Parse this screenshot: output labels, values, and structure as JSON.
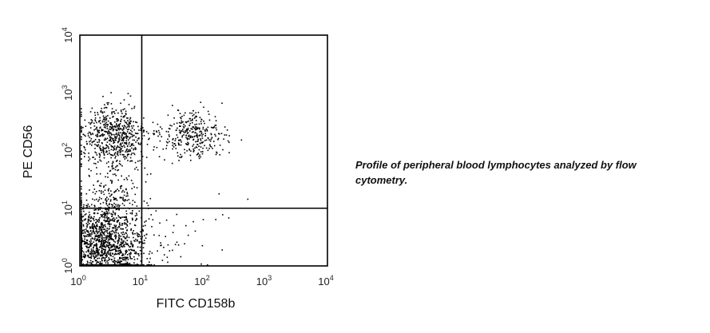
{
  "caption": "Profile of peripheral blood lymphocytes analyzed by flow cytometry.",
  "chart_data": {
    "type": "scatter",
    "title": "",
    "xlabel": "FITC CD158b",
    "ylabel": "PE CD56",
    "xscale": "log",
    "yscale": "log",
    "xlim": [
      1,
      10000
    ],
    "ylim": [
      1,
      10000
    ],
    "xticks": [
      {
        "value": 1,
        "base": "10",
        "exp": "0"
      },
      {
        "value": 10,
        "base": "10",
        "exp": "1"
      },
      {
        "value": 100,
        "base": "10",
        "exp": "2"
      },
      {
        "value": 1000,
        "base": "10",
        "exp": "3"
      },
      {
        "value": 10000,
        "base": "10",
        "exp": "4"
      }
    ],
    "yticks": [
      {
        "value": 1,
        "base": "10",
        "exp": "0"
      },
      {
        "value": 10,
        "base": "10",
        "exp": "1"
      },
      {
        "value": 100,
        "base": "10",
        "exp": "2"
      },
      {
        "value": 1000,
        "base": "10",
        "exp": "3"
      },
      {
        "value": 10000,
        "base": "10",
        "exp": "4"
      }
    ],
    "quadrant_gates": {
      "x": 10,
      "y": 10
    },
    "grid": false,
    "point_color": "#000000",
    "populations": [
      {
        "center": [
          2.4,
          2.6
        ],
        "spread_decades": [
          0.35,
          0.38
        ],
        "count": 1500
      },
      {
        "center": [
          3.4,
          170
        ],
        "spread_decades": [
          0.28,
          0.28
        ],
        "count": 650
      },
      {
        "center": [
          65,
          190
        ],
        "spread_decades": [
          0.25,
          0.2
        ],
        "count": 330
      },
      {
        "center": [
          3.6,
          18
        ],
        "spread_decades": [
          0.22,
          0.22
        ],
        "count": 110
      },
      {
        "center": [
          70,
          3.5
        ],
        "spread_decades": [
          0.45,
          0.35
        ],
        "count": 30
      }
    ]
  }
}
